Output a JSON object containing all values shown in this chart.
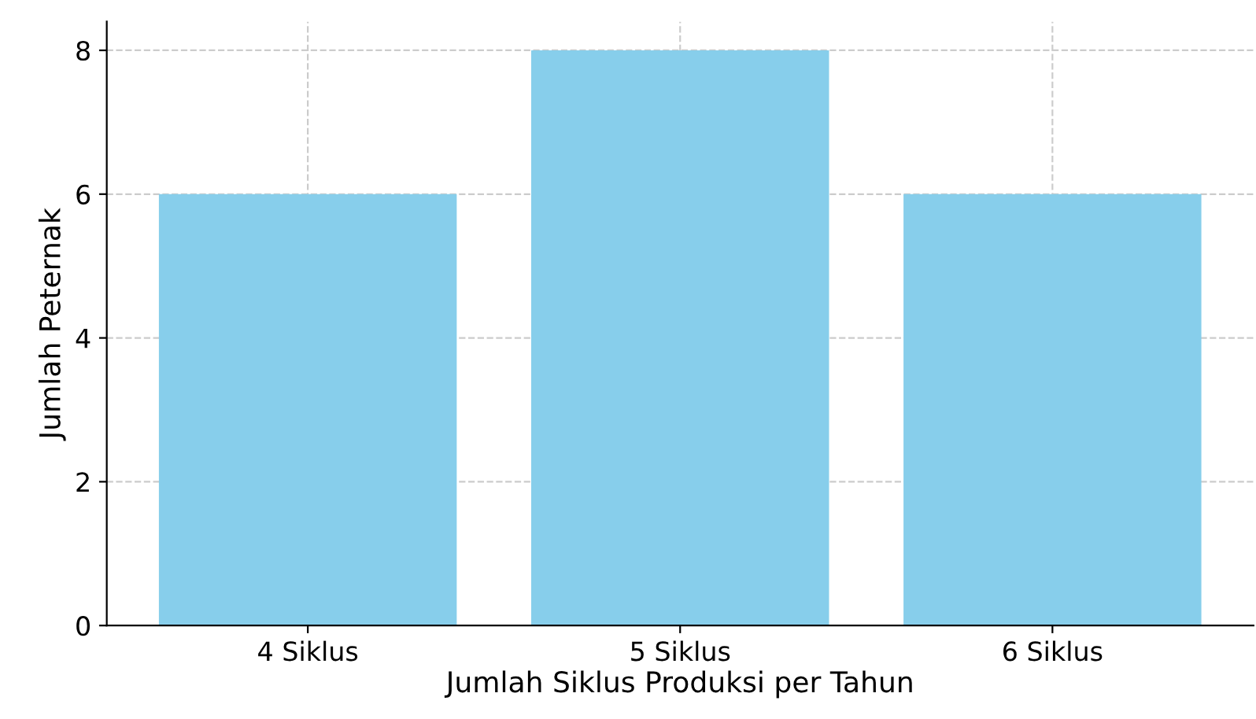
{
  "chart_data": {
    "type": "bar",
    "xlabel": "Jumlah Siklus Produksi per Tahun",
    "ylabel": "Jumlah Peternak",
    "categories": [
      "4 Siklus",
      "5 Siklus",
      "6 Siklus"
    ],
    "values": [
      6,
      8,
      6
    ],
    "color": "#87ceeb",
    "ylim": [
      0,
      8.4
    ],
    "yticks": [
      0,
      2,
      4,
      6,
      8
    ],
    "grid": true
  }
}
